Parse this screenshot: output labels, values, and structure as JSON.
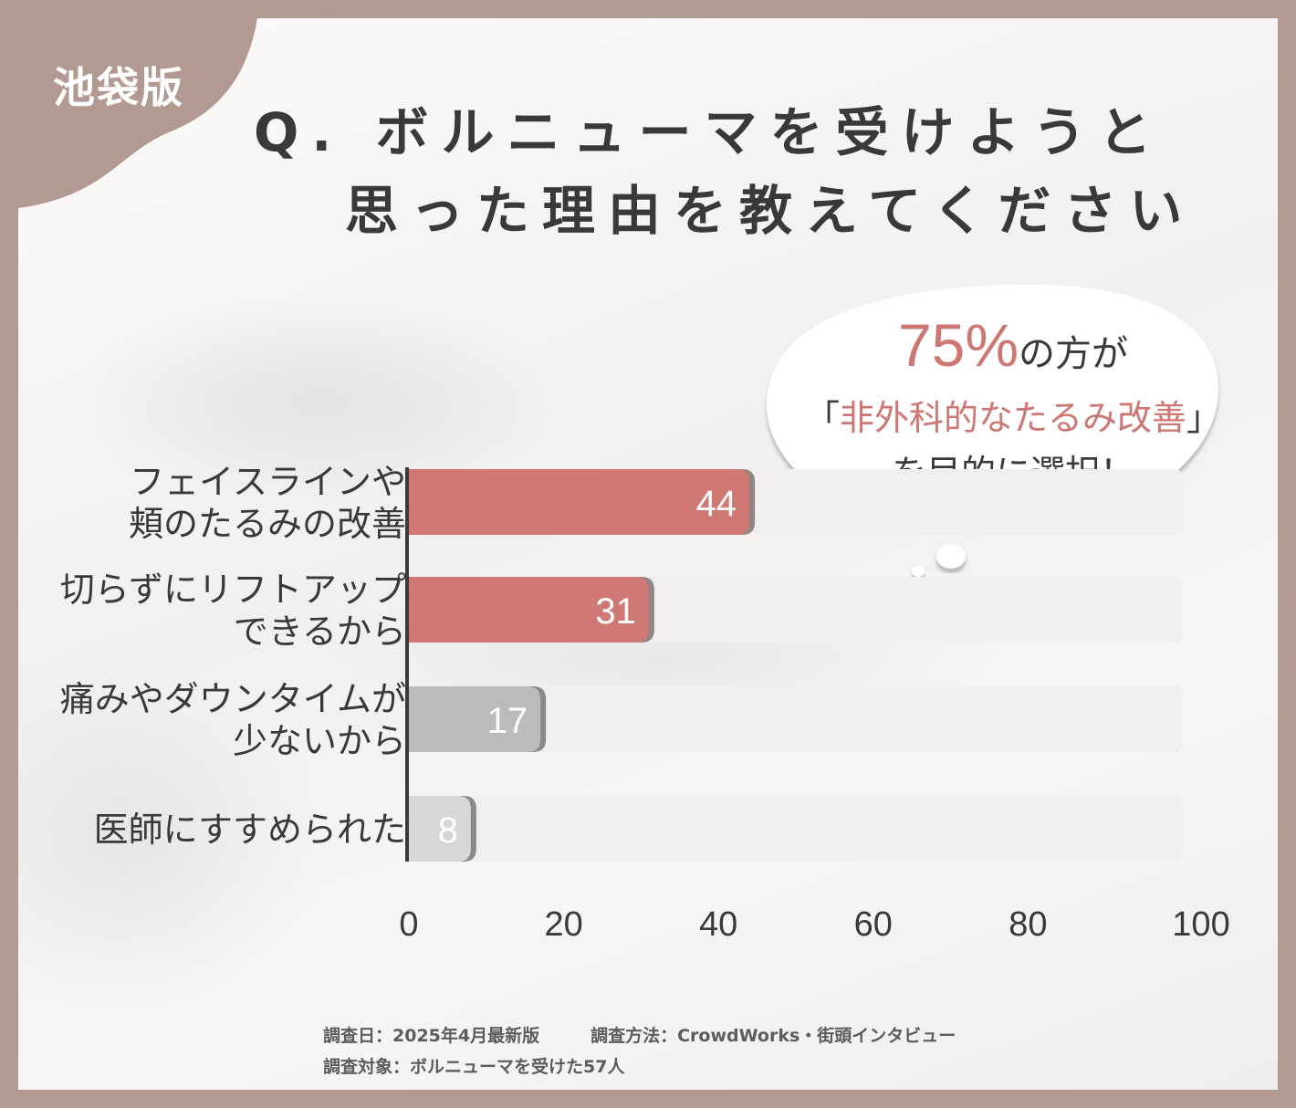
{
  "corner_label": "池袋版",
  "title": {
    "line1": "Q. ボルニューマを受けようと",
    "line2": "思った理由を教えてください"
  },
  "callout": {
    "percent": "75%",
    "line1_suffix": "の方が",
    "bracket_open": "「",
    "highlight": "非外科的なたるみ改善",
    "bracket_close": "」",
    "line3": "を目的に選択！"
  },
  "colors": {
    "frame": "#b29a92",
    "bar_highlight": "#d07874",
    "bar_gray": "#bdbab9",
    "bar_light": "#d9d7d6",
    "track": "#f1eeed",
    "accent_text": "#cd7672"
  },
  "chart_data": {
    "type": "bar",
    "orientation": "horizontal",
    "categories": [
      "フェイスラインや\n頬のたるみの改善",
      "切らずにリフトアップ\nできるから",
      "痛みやダウンタイムが\n少ないから",
      "医師にすすめられた"
    ],
    "values": [
      44,
      31,
      17,
      8
    ],
    "data_labels": [
      "44",
      "31",
      "17",
      "8"
    ],
    "bar_colors": [
      "#d07874",
      "#d07874",
      "#bdbab9",
      "#d9d7d6"
    ],
    "xlim": [
      0,
      100
    ],
    "x_ticks": [
      "0",
      "20",
      "40",
      "60",
      "80",
      "100"
    ],
    "grid": false
  },
  "footer": {
    "survey_date": "調査日：2025年4月最新版",
    "survey_method": "調査方法：CrowdWorks・街頭インタビュー",
    "survey_target": "調査対象：ボルニューマを受けた57人"
  }
}
